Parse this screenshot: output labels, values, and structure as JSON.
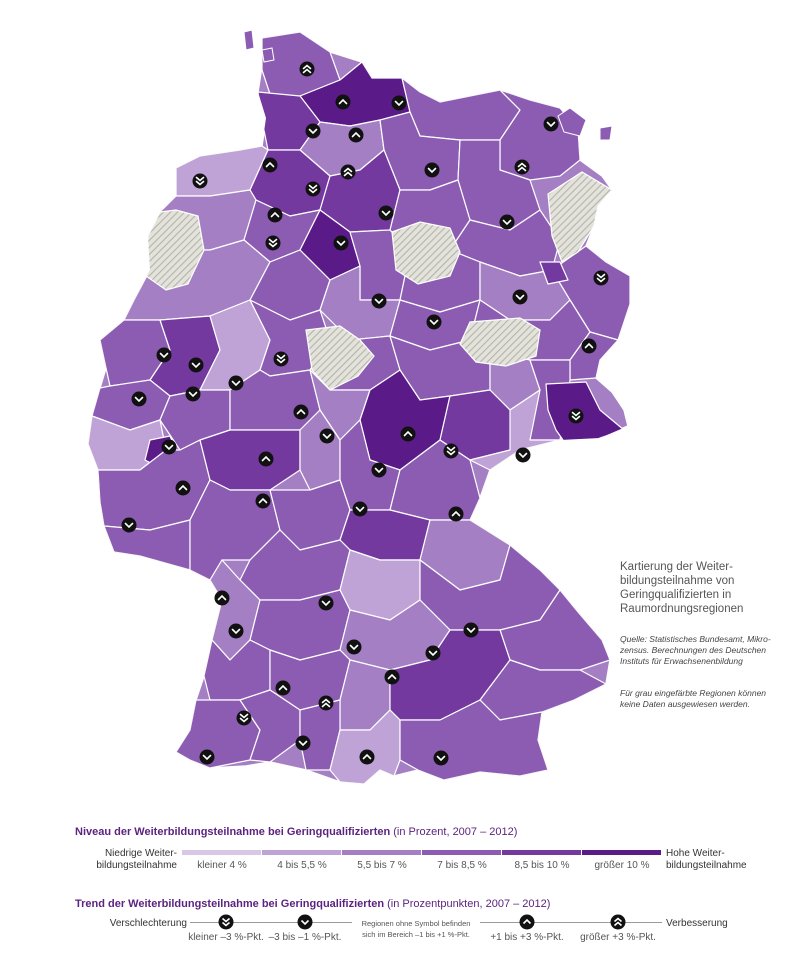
{
  "colors": {
    "level": [
      "#d8c8e6",
      "#bfa3d6",
      "#a57fc4",
      "#8c5cb2",
      "#73399f",
      "#5a1a88"
    ],
    "no_data": "#cfcfc5",
    "border": "#ffffff",
    "symbol": "#111111"
  },
  "map_title": "Kartierung der Weiterbildungsteilnahme von Geringqualifizierten in Raumordnungsregionen",
  "map_title_lines": [
    "Kartierung der Weiter-",
    "bildungsteilnahme von",
    "Geringqualifizierten in",
    "Raumordnungsregionen"
  ],
  "source_lines": [
    "Quelle: Statistisches Bundesamt, Mikro-",
    "zensus. Berechnungen des Deutschen",
    "Instituts für Erwachsenenbildung"
  ],
  "note_lines": [
    "Für grau eingefärbte Regionen können",
    "keine Daten ausgewiesen werden."
  ],
  "legend_level": {
    "title": "Niveau der Weiterbildungsteilnahme bei Geringqualifizierten",
    "subtitle": "(in Prozent, 2007 – 2012)",
    "low_label_lines": [
      "Niedrige Weiter-",
      "bildungsteilnahme"
    ],
    "high_label_lines": [
      "Hohe Weiter-",
      "bildungsteilnahme"
    ],
    "categories": [
      "kleiner 4 %",
      "4 bis 5,5 %",
      "5,5 bis 7 %",
      "7 bis 8,5 %",
      "8,5 bis 10 %",
      "größer 10 %"
    ]
  },
  "legend_trend": {
    "title": "Trend der Weiterbildungsteilnahme bei Geringqualifizierten",
    "subtitle": "(in Prozentpunkten, 2007 – 2012)",
    "left_label": "Verschlechterung",
    "right_label": "Verbesserung",
    "center_note_lines": [
      "Regionen ohne Symbol befinden",
      "sich im Bereich –1 bis +1 %-Pkt."
    ],
    "categories": [
      {
        "label": "kleiner –3 %-Pkt.",
        "symbol": "double-down"
      },
      {
        "label": "–3 bis –1 %-Pkt.",
        "symbol": "down"
      },
      {
        "label": "+1 bis +3 %-Pkt.",
        "symbol": "up"
      },
      {
        "label": "größer +3 %-Pkt.",
        "symbol": "double-up"
      }
    ]
  }
}
